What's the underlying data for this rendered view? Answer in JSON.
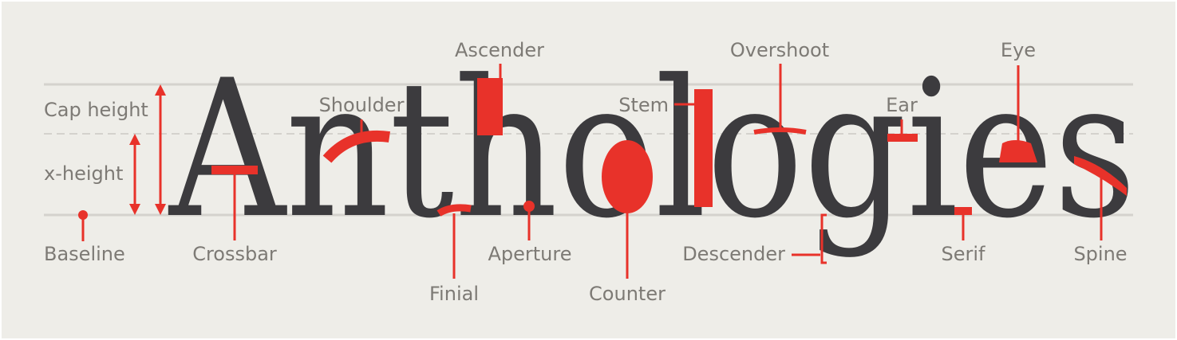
{
  "diagram": {
    "word": "Anthologies",
    "colors": {
      "background": "#eeede8",
      "letters": "#3c3b3e",
      "highlight": "#e8322a",
      "guides": "#d4d2cd",
      "label_text": "#7d7a75"
    },
    "labels": {
      "cap_height": "Cap height",
      "x_height": "x-height",
      "baseline": "Baseline",
      "crossbar": "Crossbar",
      "shoulder": "Shoulder",
      "ascender": "Ascender",
      "finial": "Finial",
      "aperture": "Aperture",
      "stem": "Stem",
      "counter": "Counter",
      "overshoot": "Overshoot",
      "descender": "Descender",
      "ear": "Ear",
      "serif": "Serif",
      "eye": "Eye",
      "spine": "Spine"
    }
  }
}
